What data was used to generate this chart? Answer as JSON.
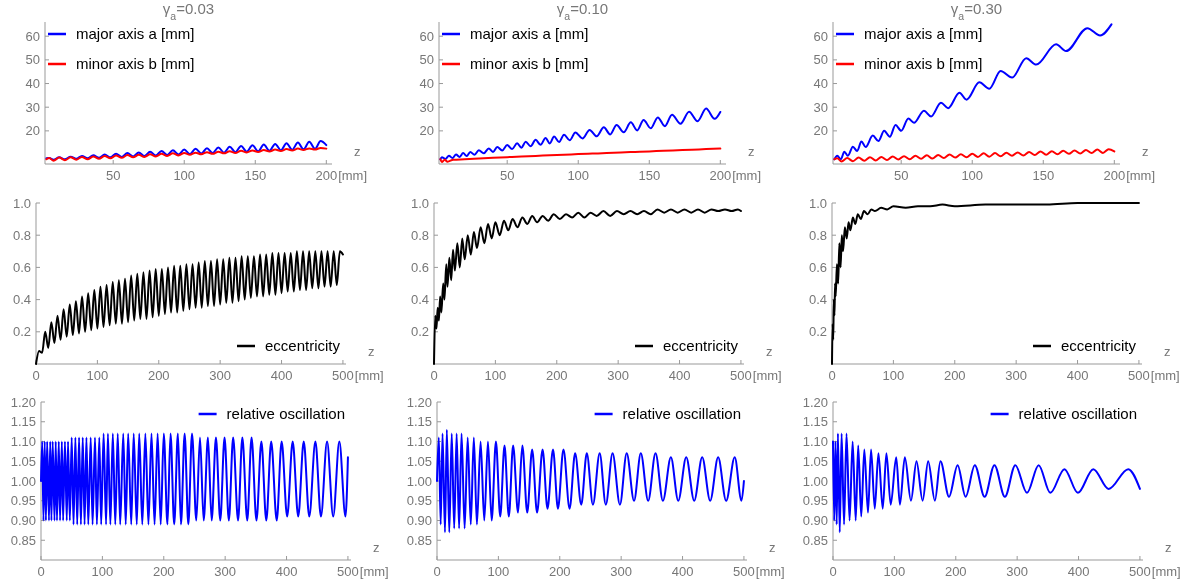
{
  "chart_data": [
    {
      "type": "line",
      "title": "γ$_{a}$=0.03",
      "xlabel": "z",
      "annotations": [
        "[mm]"
      ],
      "legend": "top left",
      "xlim": [
        2,
        204
      ],
      "ylim": [
        6,
        66
      ],
      "xticks": [
        50,
        100,
        150,
        200
      ],
      "yticks": [
        20,
        30,
        40,
        50,
        60
      ],
      "x": [
        3,
        5,
        8,
        12,
        16,
        20,
        24,
        28,
        32,
        36,
        40,
        44,
        48,
        52,
        56,
        60,
        64,
        68,
        72,
        76,
        80,
        84,
        88,
        92,
        96,
        100,
        104,
        108,
        112,
        116,
        120,
        124,
        128,
        132,
        136,
        140,
        144,
        148,
        152,
        156,
        160,
        164,
        168,
        172,
        176,
        180,
        184,
        188,
        192,
        196,
        200
      ],
      "series": [
        {
          "name": "major axis a [mm]",
          "color": "#0000ff",
          "values": [
            8.4,
            8.5,
            7.8,
            8.8,
            8.0,
            9.1,
            8.2,
            9.4,
            8.4,
            9.7,
            8.6,
            10.0,
            8.8,
            10.3,
            9.0,
            10.6,
            9.2,
            10.9,
            9.4,
            11.2,
            9.6,
            11.5,
            9.8,
            11.8,
            10.0,
            12.1,
            10.2,
            12.4,
            10.4,
            12.7,
            10.6,
            13.0,
            10.8,
            13.3,
            11.0,
            13.6,
            11.2,
            13.9,
            11.4,
            14.2,
            11.6,
            14.5,
            11.8,
            14.8,
            12.0,
            15.1,
            12.2,
            15.4,
            12.4,
            15.7,
            14.0
          ]
        },
        {
          "name": "minor axis b [mm]",
          "color": "#ff0000",
          "values": [
            8.0,
            8.5,
            7.4,
            8.7,
            7.6,
            8.9,
            7.8,
            9.0,
            8.0,
            9.2,
            8.2,
            9.4,
            8.4,
            9.6,
            8.6,
            9.8,
            8.8,
            9.9,
            9.0,
            10.1,
            9.2,
            10.3,
            9.4,
            10.5,
            9.6,
            10.7,
            9.9,
            10.8,
            10.1,
            11.0,
            10.3,
            11.2,
            10.5,
            11.4,
            10.7,
            11.6,
            10.9,
            11.7,
            11.1,
            11.9,
            11.3,
            12.1,
            11.5,
            12.3,
            11.7,
            12.5,
            11.9,
            12.6,
            12.1,
            12.8,
            12.5
          ]
        }
      ]
    },
    {
      "type": "line",
      "title": "γ$_{a}$=0.10",
      "xlabel": "z",
      "annotations": [
        "[mm]"
      ],
      "legend": "top left",
      "xlim": [
        2,
        204
      ],
      "ylim": [
        6,
        66
      ],
      "xticks": [
        50,
        100,
        150,
        200
      ],
      "yticks": [
        20,
        30,
        40,
        50,
        60
      ],
      "series": [
        {
          "name": "major axis a [mm]",
          "color": "#0000ff",
          "x": [
            3,
            4,
            6.5,
            9,
            11.5,
            14,
            16.5,
            19,
            21.5,
            24,
            27,
            30,
            33.5,
            37,
            40,
            43,
            46.5,
            50,
            53.5,
            57,
            60,
            63,
            66.5,
            70,
            73.5,
            77,
            80,
            83,
            86.5,
            90,
            94,
            98,
            103,
            108,
            113,
            118,
            122.5,
            127,
            132,
            137,
            141.5,
            146,
            151,
            156,
            161,
            166,
            172,
            178,
            184,
            190,
            196,
            200
          ],
          "values": [
            8.0,
            8.9,
            8.1,
            9.5,
            8.5,
            10.0,
            9.0,
            10.6,
            9.4,
            11.1,
            9.9,
            11.8,
            10.5,
            12.6,
            11.1,
            13.2,
            11.7,
            14.0,
            12.3,
            14.8,
            12.9,
            15.4,
            13.5,
            16.2,
            14.1,
            17.0,
            14.7,
            17.6,
            15.3,
            18.4,
            16.0,
            19.3,
            16.8,
            20.4,
            17.7,
            21.5,
            18.5,
            22.5,
            19.4,
            23.6,
            20.2,
            24.6,
            21.1,
            25.7,
            22.0,
            26.8,
            23.0,
            28.1,
            24.1,
            29.4,
            25.1,
            28.0
          ]
        },
        {
          "name": "minor axis b [mm]",
          "color": "#ff0000",
          "x": [
            3,
            4,
            6,
            8,
            12,
            20,
            30,
            40,
            50,
            60,
            70,
            80,
            90,
            100,
            110,
            120,
            130,
            140,
            150,
            160,
            170,
            180,
            190,
            200
          ],
          "values": [
            8.0,
            6.8,
            7.8,
            7.0,
            7.8,
            8.0,
            8.3,
            8.6,
            8.9,
            9.2,
            9.4,
            9.7,
            9.9,
            10.2,
            10.4,
            10.6,
            10.9,
            11.1,
            11.3,
            11.6,
            11.8,
            12.0,
            12.3,
            12.5
          ]
        }
      ]
    },
    {
      "type": "line",
      "title": "γ$_{a}$=0.30",
      "xlabel": "z",
      "annotations": [
        "[mm]"
      ],
      "legend": "top left",
      "xlim": [
        2,
        204
      ],
      "ylim": [
        6,
        66
      ],
      "xticks": [
        50,
        100,
        150,
        200
      ],
      "yticks": [
        20,
        30,
        40,
        50,
        60
      ],
      "series": [
        {
          "name": "major axis a [mm]",
          "color": "#0000ff",
          "x": [
            3,
            5,
            7.5,
            10,
            12.5,
            16,
            19,
            22,
            25,
            30,
            34,
            38,
            42,
            46,
            50,
            55,
            59,
            66,
            71,
            78,
            83,
            91,
            96,
            105,
            112,
            120,
            128,
            138,
            145,
            159,
            166,
            181,
            190,
            198
          ],
          "values": [
            8.0,
            9.5,
            8.0,
            11.2,
            9.5,
            13.3,
            11.5,
            15.5,
            13.2,
            18.0,
            15.7,
            20.0,
            17.5,
            22.5,
            20.0,
            25.2,
            23.4,
            28.5,
            26.1,
            31.9,
            29.6,
            36.1,
            33.2,
            40.5,
            37.8,
            45.3,
            42.5,
            50.7,
            48.0,
            56.6,
            53.7,
            63.4,
            60.3,
            65.0
          ]
        },
        {
          "name": "minor axis b [mm]",
          "color": "#ff0000",
          "x": [
            3,
            5,
            8,
            12,
            16,
            20,
            24,
            28,
            32,
            36,
            40,
            44,
            48,
            52,
            56,
            60,
            64,
            68,
            72,
            76,
            80,
            84,
            88,
            92,
            96,
            100,
            104,
            108,
            112,
            116,
            120,
            124,
            128,
            132,
            136,
            140,
            144,
            148,
            152,
            156,
            160,
            164,
            168,
            172,
            176,
            180,
            184,
            188,
            192,
            196,
            200
          ],
          "values": [
            8.0,
            8.4,
            7.1,
            8.5,
            7.2,
            8.7,
            7.4,
            8.9,
            7.5,
            9.0,
            7.7,
            9.2,
            7.9,
            9.3,
            8.0,
            9.5,
            8.2,
            9.7,
            8.3,
            9.8,
            8.5,
            10.0,
            8.7,
            10.1,
            8.8,
            10.3,
            9.0,
            10.5,
            9.1,
            10.6,
            9.3,
            10.8,
            9.5,
            10.9,
            9.6,
            11.1,
            9.8,
            11.3,
            9.9,
            11.4,
            10.1,
            11.6,
            10.3,
            11.7,
            10.4,
            11.9,
            10.6,
            12.1,
            10.7,
            12.2,
            11.3
          ]
        }
      ]
    },
    {
      "type": "line",
      "xlabel": "z",
      "annotations": [
        "[mm]"
      ],
      "legend": "bottom right",
      "xlim": [
        0,
        505
      ],
      "ylim": [
        0,
        1
      ],
      "xticks": [
        0,
        100,
        200,
        300,
        400,
        500
      ],
      "yticks": [
        0.2,
        0.4,
        0.6,
        0.8,
        {
          "value": 1,
          "label": "1.0"
        }
      ],
      "series": [
        {
          "name": "eccentricity",
          "color": "#000000",
          "x": [
            0,
            5,
            10,
            15,
            20,
            25,
            30,
            35,
            40,
            45,
            50,
            55,
            60,
            65,
            70,
            75,
            80,
            85,
            90,
            95,
            100,
            105,
            110,
            115,
            120,
            125,
            130,
            135,
            140,
            145,
            150,
            155,
            160,
            165,
            170,
            175,
            180,
            185,
            190,
            195,
            200,
            205,
            210,
            215,
            220,
            225,
            230,
            235,
            240,
            245,
            250,
            255,
            260,
            265,
            270,
            275,
            280,
            285,
            290,
            295,
            300,
            305,
            310,
            315,
            320,
            325,
            330,
            335,
            340,
            345,
            350,
            355,
            360,
            365,
            370,
            375,
            380,
            385,
            390,
            395,
            400,
            405,
            410,
            415,
            420,
            425,
            430,
            435,
            440,
            445,
            450,
            455,
            460,
            465,
            470,
            475,
            480,
            485,
            490,
            495,
            500
          ],
          "values": [
            0,
            0.08,
            0.07,
            0.2,
            0.1,
            0.26,
            0.13,
            0.3,
            0.15,
            0.34,
            0.17,
            0.37,
            0.18,
            0.39,
            0.19,
            0.42,
            0.2,
            0.44,
            0.21,
            0.46,
            0.22,
            0.48,
            0.23,
            0.49,
            0.24,
            0.51,
            0.25,
            0.52,
            0.25,
            0.53,
            0.26,
            0.55,
            0.27,
            0.56,
            0.28,
            0.57,
            0.28,
            0.58,
            0.29,
            0.59,
            0.3,
            0.59,
            0.31,
            0.6,
            0.32,
            0.61,
            0.32,
            0.61,
            0.33,
            0.62,
            0.34,
            0.62,
            0.35,
            0.63,
            0.35,
            0.64,
            0.36,
            0.64,
            0.36,
            0.65,
            0.37,
            0.65,
            0.38,
            0.66,
            0.38,
            0.66,
            0.39,
            0.67,
            0.4,
            0.67,
            0.41,
            0.67,
            0.42,
            0.68,
            0.42,
            0.68,
            0.43,
            0.69,
            0.43,
            0.69,
            0.44,
            0.69,
            0.45,
            0.69,
            0.45,
            0.7,
            0.46,
            0.7,
            0.46,
            0.7,
            0.47,
            0.7,
            0.47,
            0.7,
            0.48,
            0.7,
            0.48,
            0.7,
            0.49,
            0.7,
            0.68
          ]
        }
      ]
    },
    {
      "type": "line",
      "xlabel": "z",
      "annotations": [
        "[mm]"
      ],
      "legend": "bottom right",
      "xlim": [
        0,
        505
      ],
      "ylim": [
        0,
        1
      ],
      "xticks": [
        0,
        100,
        200,
        300,
        400,
        500
      ],
      "yticks": [
        0.2,
        0.4,
        0.6,
        0.8,
        {
          "value": 1,
          "label": "1.0"
        }
      ],
      "series": [
        {
          "name": "eccentricity",
          "color": "#000000",
          "x": [
            0,
            2,
            4,
            6,
            8,
            10,
            12,
            15,
            17,
            20,
            22,
            25,
            28,
            31,
            34,
            38,
            42,
            46,
            50,
            55,
            60,
            65,
            70,
            76,
            82,
            88,
            94,
            100,
            107,
            114,
            121,
            128,
            136,
            144,
            152,
            160,
            168,
            177,
            186,
            195,
            205,
            215,
            225,
            235,
            245,
            255,
            265,
            276,
            287,
            298,
            309,
            320,
            331,
            342,
            353,
            364,
            375,
            386,
            397,
            408,
            419,
            430,
            441,
            452,
            463,
            474,
            485,
            495,
            500
          ],
          "values": [
            0,
            0.3,
            0.22,
            0.35,
            0.27,
            0.42,
            0.32,
            0.5,
            0.4,
            0.62,
            0.48,
            0.66,
            0.52,
            0.71,
            0.58,
            0.75,
            0.6,
            0.78,
            0.65,
            0.8,
            0.68,
            0.82,
            0.72,
            0.85,
            0.75,
            0.87,
            0.78,
            0.88,
            0.8,
            0.89,
            0.83,
            0.9,
            0.85,
            0.91,
            0.87,
            0.92,
            0.88,
            0.92,
            0.89,
            0.93,
            0.9,
            0.93,
            0.91,
            0.94,
            0.91,
            0.94,
            0.92,
            0.95,
            0.92,
            0.95,
            0.93,
            0.95,
            0.93,
            0.95,
            0.93,
            0.96,
            0.94,
            0.96,
            0.94,
            0.96,
            0.94,
            0.96,
            0.94,
            0.96,
            0.95,
            0.96,
            0.95,
            0.96,
            0.95
          ]
        }
      ]
    },
    {
      "type": "line",
      "xlabel": "z",
      "annotations": [
        "[mm]"
      ],
      "legend": "bottom right",
      "xlim": [
        0,
        505
      ],
      "ylim": [
        0,
        1
      ],
      "xticks": [
        0,
        100,
        200,
        300,
        400,
        500
      ],
      "yticks": [
        0.2,
        0.4,
        0.6,
        0.8,
        {
          "value": 1,
          "label": "1.0"
        }
      ],
      "series": [
        {
          "name": "eccentricity",
          "color": "#000000",
          "x": [
            0,
            1,
            2,
            3,
            4,
            5,
            6,
            8,
            10,
            12,
            14,
            16,
            18,
            21,
            24,
            27,
            30,
            34,
            38,
            42,
            47,
            52,
            58,
            64,
            70,
            80,
            90,
            100,
            120,
            140,
            160,
            180,
            200,
            250,
            300,
            350,
            400,
            450,
            500
          ],
          "values": [
            0,
            0.25,
            0.15,
            0.4,
            0.3,
            0.5,
            0.42,
            0.62,
            0.5,
            0.75,
            0.6,
            0.8,
            0.7,
            0.85,
            0.78,
            0.88,
            0.83,
            0.91,
            0.87,
            0.93,
            0.9,
            0.95,
            0.93,
            0.96,
            0.95,
            0.97,
            0.96,
            0.98,
            0.97,
            0.98,
            0.98,
            0.99,
            0.98,
            0.99,
            0.99,
            0.99,
            1.0,
            1.0,
            1.0
          ]
        }
      ]
    },
    {
      "type": "line",
      "xlabel": "z",
      "annotations": [
        "[mm]"
      ],
      "legend": "top right",
      "xlim": [
        0,
        505
      ],
      "ylim": [
        0.8,
        1.2
      ],
      "xticks": [
        0,
        100,
        200,
        300,
        400,
        500
      ],
      "yticks": [
        0.85,
        {
          "value": 0.9,
          "label": "0.90"
        },
        0.95,
        {
          "value": 1,
          "label": "1.00"
        },
        1.05,
        {
          "value": 1.1,
          "label": "1.10"
        },
        1.15,
        {
          "value": 1.2,
          "label": "1.20"
        }
      ],
      "series": [
        {
          "name": "relative oscillation",
          "color": "#0000ff",
          "x": [
            0,
            2,
            4,
            6,
            8,
            10,
            13,
            15,
            17,
            19,
            22,
            24,
            26,
            29,
            31,
            34,
            36,
            39,
            42,
            44,
            47,
            50,
            53,
            56,
            59,
            62,
            65,
            68,
            71,
            74,
            77,
            81,
            84,
            88,
            91,
            95,
            98,
            102,
            106,
            109,
            113,
            117,
            121,
            125,
            129,
            134,
            138,
            142,
            147,
            151,
            156,
            160,
            165,
            170,
            175,
            180,
            185,
            190,
            195,
            200,
            206,
            211,
            217,
            223,
            228,
            234,
            240,
            246,
            253,
            259,
            265,
            272,
            278,
            285,
            292,
            299,
            306,
            313,
            321,
            328,
            336,
            343,
            351,
            359,
            367,
            375,
            384,
            392,
            401,
            410,
            419,
            428,
            437,
            447,
            456,
            466,
            476,
            486,
            496,
            500
          ],
          "values": [
            1.0,
            1.1,
            0.9,
            1.1,
            0.9,
            1.1,
            0.9,
            1.1,
            0.9,
            1.1,
            0.9,
            1.1,
            0.9,
            1.1,
            0.9,
            1.1,
            0.9,
            1.1,
            0.9,
            1.1,
            0.9,
            1.11,
            0.89,
            1.11,
            0.89,
            1.11,
            0.89,
            1.11,
            0.89,
            1.11,
            0.89,
            1.11,
            0.89,
            1.11,
            0.89,
            1.11,
            0.89,
            1.12,
            0.89,
            1.12,
            0.89,
            1.12,
            0.89,
            1.12,
            0.89,
            1.12,
            0.89,
            1.12,
            0.89,
            1.12,
            0.89,
            1.12,
            0.89,
            1.12,
            0.89,
            1.12,
            0.89,
            1.12,
            0.89,
            1.12,
            0.89,
            1.12,
            0.89,
            1.12,
            0.89,
            1.12,
            0.89,
            1.12,
            0.9,
            1.11,
            0.9,
            1.11,
            0.9,
            1.11,
            0.9,
            1.11,
            0.9,
            1.11,
            0.9,
            1.11,
            0.9,
            1.11,
            0.9,
            1.1,
            0.9,
            1.1,
            0.9,
            1.1,
            0.91,
            1.1,
            0.91,
            1.1,
            0.91,
            1.1,
            0.91,
            1.1,
            0.91,
            1.1,
            0.91,
            1.06
          ]
        }
      ]
    },
    {
      "type": "line",
      "xlabel": "z",
      "annotations": [
        "[mm]"
      ],
      "legend": "top right",
      "xlim": [
        0,
        505
      ],
      "ylim": [
        0.8,
        1.2
      ],
      "xticks": [
        0,
        100,
        200,
        300,
        400,
        500
      ],
      "yticks": [
        0.85,
        {
          "value": 0.9,
          "label": "0.90"
        },
        0.95,
        {
          "value": 1,
          "label": "1.00"
        },
        1.05,
        {
          "value": 1.1,
          "label": "1.10"
        },
        1.15,
        {
          "value": 1.2,
          "label": "1.20"
        }
      ],
      "series": [
        {
          "name": "relative oscillation",
          "color": "#0000ff",
          "x": [
            0,
            3,
            6,
            9,
            13,
            16,
            20,
            24,
            28,
            32,
            36,
            40,
            45,
            50,
            55,
            60,
            65,
            71,
            77,
            83,
            89,
            96,
            103,
            110,
            117,
            124,
            132,
            139,
            147,
            155,
            163,
            172,
            180,
            189,
            197,
            206,
            216,
            225,
            235,
            244,
            254,
            265,
            275,
            286,
            298,
            309,
            321,
            332,
            344,
            356,
            368,
            381,
            393,
            406,
            419,
            432,
            445,
            458,
            471,
            485,
            496,
            500
          ],
          "values": [
            1.0,
            1.11,
            0.89,
            1.12,
            0.87,
            1.13,
            0.87,
            1.12,
            0.88,
            1.12,
            0.88,
            1.12,
            0.88,
            1.11,
            0.89,
            1.11,
            0.89,
            1.1,
            0.9,
            1.1,
            0.9,
            1.1,
            0.91,
            1.09,
            0.91,
            1.09,
            0.92,
            1.09,
            0.92,
            1.08,
            0.92,
            1.08,
            0.93,
            1.08,
            0.93,
            1.08,
            0.93,
            1.07,
            0.94,
            1.07,
            0.94,
            1.07,
            0.94,
            1.07,
            0.94,
            1.07,
            0.95,
            1.07,
            0.95,
            1.07,
            0.95,
            1.06,
            0.95,
            1.06,
            0.95,
            1.06,
            0.95,
            1.06,
            0.95,
            1.06,
            0.95,
            1.0
          ]
        }
      ]
    },
    {
      "type": "line",
      "xlabel": "z",
      "annotations": [
        "[mm]"
      ],
      "legend": "top right",
      "xlim": [
        0,
        505
      ],
      "ylim": [
        0.8,
        1.2
      ],
      "xticks": [
        0,
        100,
        200,
        300,
        400,
        500
      ],
      "yticks": [
        0.85,
        {
          "value": 0.9,
          "label": "0.90"
        },
        0.95,
        {
          "value": 1,
          "label": "1.00"
        },
        1.05,
        {
          "value": 1.1,
          "label": "1.10"
        },
        1.15,
        {
          "value": 1.2,
          "label": "1.20"
        }
      ],
      "series": [
        {
          "name": "relative oscillation",
          "color": "#0000ff",
          "x": [
            0,
            2,
            4,
            6,
            8,
            11,
            14,
            18,
            22,
            27,
            32,
            37,
            41,
            46,
            51,
            57,
            62,
            68,
            74,
            81,
            87,
            94,
            103,
            109,
            117,
            127,
            136,
            146,
            155,
            166,
            175,
            189,
            203,
            216,
            231,
            247,
            263,
            280,
            297,
            316,
            335,
            354,
            377,
            399,
            424,
            449,
            481,
            500
          ],
          "values": [
            1.1,
            0.9,
            1.1,
            0.89,
            1.12,
            0.87,
            1.12,
            0.89,
            1.12,
            0.9,
            1.1,
            0.9,
            1.09,
            0.91,
            1.08,
            0.92,
            1.08,
            0.93,
            1.07,
            0.93,
            1.07,
            0.94,
            1.06,
            0.94,
            1.06,
            0.95,
            1.05,
            0.95,
            1.05,
            0.95,
            1.05,
            0.96,
            1.04,
            0.96,
            1.04,
            0.96,
            1.04,
            0.96,
            1.04,
            0.97,
            1.04,
            0.97,
            1.03,
            0.97,
            1.03,
            0.98,
            1.03,
            0.98
          ]
        }
      ]
    }
  ]
}
